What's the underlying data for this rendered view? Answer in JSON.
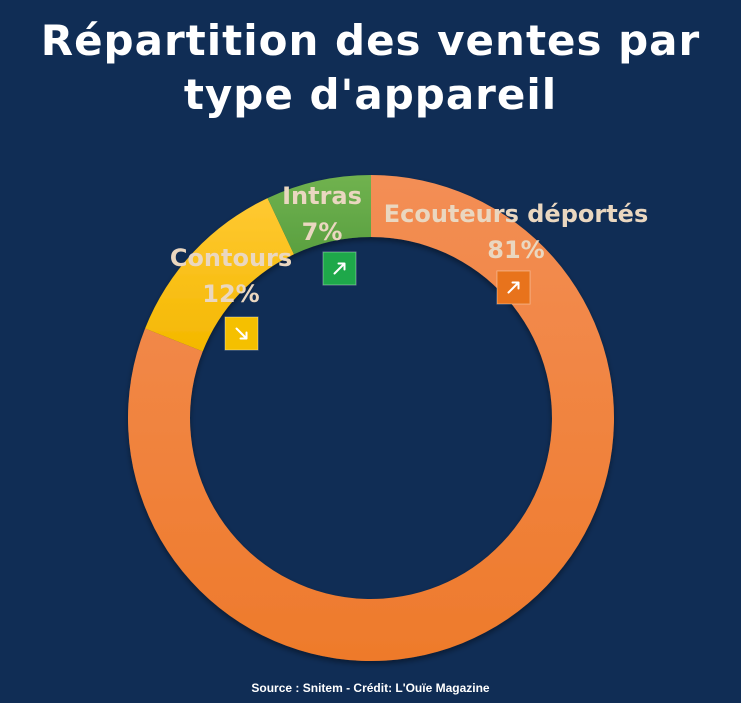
{
  "chart_data": {
    "type": "pie",
    "variant": "donut",
    "title": "Répartition des ventes par type d'appareil",
    "slices": [
      {
        "label": "Ecouteurs déportés",
        "value": 81,
        "value_label": "81%",
        "color": "#ee7a2b",
        "color_light": "#f38e55",
        "trend": "up",
        "badge_color": "#e8731c"
      },
      {
        "label": "Contours",
        "value": 12,
        "value_label": "12%",
        "color": "#f4b800",
        "color_light": "#ffc933",
        "trend": "down",
        "badge_color": "#f5c000"
      },
      {
        "label": "Intras",
        "value": 7,
        "value_label": "7%",
        "color": "#5aa040",
        "color_light": "#70b24f",
        "trend": "up",
        "badge_color": "#1ea84a"
      }
    ]
  },
  "footer": {
    "source": "Source : Snitem - Crédit: L'Ouïe Magazine"
  },
  "colors": {
    "background": "#102d55",
    "text": "#ffffff",
    "label": "#ead7c0"
  },
  "icons": {
    "up": "arrow-up-right-icon",
    "down": "arrow-down-right-icon"
  }
}
